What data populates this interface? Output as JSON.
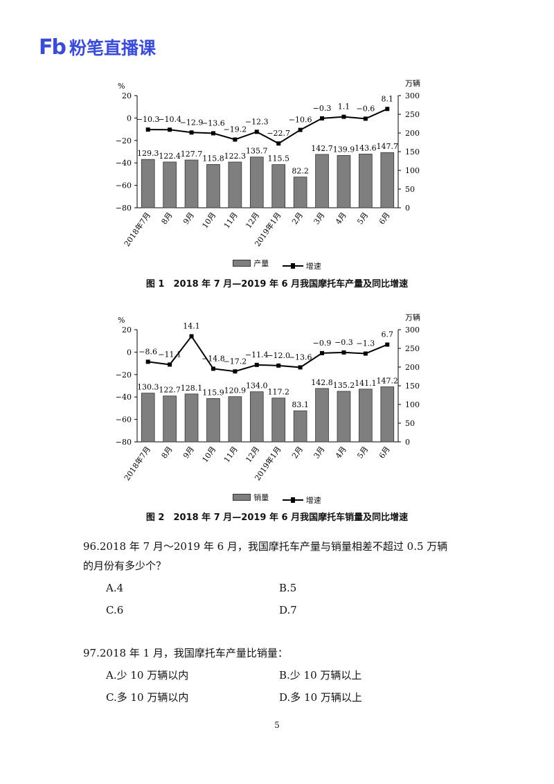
{
  "header": {
    "logo_mark": "Fb",
    "logo_text": "粉笔直播课"
  },
  "chart_data": [
    {
      "type": "bar+line",
      "caption": "图 1　2018 年 7 月—2019 年 6 月我国摩托车产量及同比增速",
      "left_unit": "%",
      "right_unit": "万辆",
      "categories": [
        "2018年7月",
        "8月",
        "9月",
        "10月",
        "11月",
        "12月",
        "2019年1月",
        "2月",
        "3月",
        "4月",
        "5月",
        "6月"
      ],
      "left_axis": {
        "min": -80,
        "max": 20,
        "ticks": [
          20,
          0,
          -20,
          -40,
          -60,
          -80
        ],
        "tick_labels": [
          "20",
          "0",
          "−20",
          "−40",
          "−60",
          "−80"
        ]
      },
      "right_axis": {
        "min": 0,
        "max": 300,
        "ticks": [
          300,
          250,
          200,
          150,
          100,
          50,
          0
        ]
      },
      "bar_series": {
        "name": "产量",
        "values": [
          129.3,
          122.4,
          127.7,
          115.8,
          122.3,
          135.7,
          115.5,
          82.2,
          142.7,
          139.9,
          143.6,
          147.7
        ],
        "labels": [
          "129.3",
          "122.4",
          "127.7",
          "115.8",
          "122.3",
          "135.7",
          "115.5",
          "82.2",
          "142.7",
          "139.9",
          "143.6",
          "147.7"
        ]
      },
      "line_series": {
        "name": "增速",
        "values": [
          -10.3,
          -10.4,
          -12.9,
          -13.6,
          -19.2,
          -12.3,
          -22.7,
          -10.6,
          -0.3,
          1.1,
          -0.6,
          8.1
        ],
        "labels": [
          "−10.3",
          "−10.4",
          "−12.9",
          "−13.6",
          "−19.2",
          "−12.3",
          "−22.7",
          "−10.6",
          "−0.3",
          "1.1",
          "−0.6",
          "8.1"
        ]
      }
    },
    {
      "type": "bar+line",
      "caption": "图 2　2018 年 7 月—2019 年 6 月我国摩托车销量及同比增速",
      "left_unit": "%",
      "right_unit": "万辆",
      "categories": [
        "2018年7月",
        "8月",
        "9月",
        "10月",
        "11月",
        "12月",
        "2019年1月",
        "2月",
        "3月",
        "4月",
        "5月",
        "6月"
      ],
      "left_axis": {
        "min": -80,
        "max": 20,
        "ticks": [
          20,
          0,
          -20,
          -40,
          -60,
          -80
        ],
        "tick_labels": [
          "20",
          "0",
          "−20",
          "−40",
          "−60",
          "−80"
        ]
      },
      "right_axis": {
        "min": 0,
        "max": 300,
        "ticks": [
          300,
          250,
          200,
          150,
          100,
          50,
          0
        ]
      },
      "bar_series": {
        "name": "销量",
        "values": [
          130.3,
          122.7,
          128.1,
          115.9,
          120.9,
          134.0,
          117.2,
          83.1,
          142.8,
          135.2,
          141.1,
          147.2
        ],
        "labels": [
          "130.3",
          "122.7",
          "128.1",
          "115.9",
          "120.9",
          "134.0",
          "117.2",
          "83.1",
          "142.8",
          "135.2",
          "141.1",
          "147.2"
        ]
      },
      "line_series": {
        "name": "增速",
        "values": [
          -8.6,
          -11.1,
          14.1,
          -14.8,
          -17.2,
          -11.4,
          -12.0,
          -13.6,
          -0.9,
          -0.3,
          -1.3,
          6.7
        ],
        "labels": [
          "−8.6",
          "−11.1",
          "14.1",
          "−14.8",
          "−17.2",
          "−11.4",
          "−12.0",
          "−13.6",
          "−0.9",
          "−0.3",
          "−1.3",
          "6.7"
        ]
      }
    }
  ],
  "questions": [
    {
      "stem_line1": "96.2018 年 7 月～2019 年 6 月，我国摩托车产量与销量相差不超过 0.5 万辆",
      "stem_line2": "的月份有多少个？",
      "options": [
        "A.4",
        "B.5",
        "C.6",
        "D.7"
      ]
    },
    {
      "stem_line1": "97.2018 年 1 月，我国摩托车产量比销量：",
      "options": [
        "A.少 10 万辆以内",
        "B.少 10 万辆以上",
        "C.多 10 万辆以内",
        "D.多 10 万辆以上"
      ]
    }
  ],
  "page_number": "5"
}
